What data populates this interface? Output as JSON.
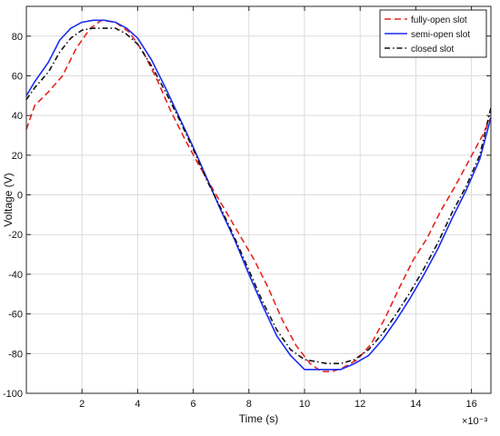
{
  "chart_data": {
    "type": "line",
    "title": "",
    "xlabel": "Time (s)",
    "ylabel": "Voltage (V)",
    "x_exponent_label": "×10⁻³",
    "xlim": [
      0,
      16.7
    ],
    "ylim": [
      -100,
      95
    ],
    "grid": true,
    "legend_position": "top-right",
    "x_ticks": [
      2,
      4,
      6,
      8,
      10,
      12,
      14,
      16
    ],
    "y_ticks": [
      -100,
      -80,
      -60,
      -40,
      -20,
      0,
      20,
      40,
      60,
      80
    ],
    "x_tick_labels": [
      "2",
      "4",
      "6",
      "8",
      "10",
      "12",
      "14",
      "16"
    ],
    "y_tick_labels": [
      "-100",
      "-80",
      "-60",
      "-40",
      "-20",
      "0",
      "20",
      "40",
      "60",
      "80"
    ],
    "series": [
      {
        "name": "fully-open slot",
        "color": "#e8231e",
        "dash": "dashed",
        "x": [
          0,
          0.3,
          0.8,
          1.3,
          1.8,
          2.3,
          2.7,
          3.2,
          3.7,
          4.2,
          4.7,
          5.2,
          5.7,
          6.2,
          6.7,
          7.2,
          7.7,
          8.2,
          8.7,
          9.2,
          9.7,
          10.2,
          10.6,
          11.0,
          11.4,
          11.9,
          12.4,
          12.9,
          13.4,
          13.9,
          14.4,
          14.9,
          15.4,
          15.9,
          16.4,
          16.7
        ],
        "y": [
          33,
          45,
          52,
          60,
          74,
          84,
          88,
          87,
          82,
          72,
          58,
          42,
          28,
          15,
          3,
          -9,
          -21,
          -33,
          -47,
          -63,
          -76,
          -85,
          -89,
          -89,
          -87,
          -83,
          -75,
          -62,
          -47,
          -33,
          -22,
          -8,
          4,
          17,
          30,
          39
        ]
      },
      {
        "name": "semi-open slot",
        "color": "#1a2cf2",
        "dash": "solid",
        "x": [
          0,
          0.3,
          0.8,
          1.2,
          1.6,
          2.0,
          2.4,
          2.8,
          3.2,
          3.6,
          4.0,
          4.5,
          5.0,
          5.5,
          6.0,
          6.5,
          7.0,
          7.5,
          8.0,
          8.5,
          9.0,
          9.5,
          10.0,
          10.4,
          10.8,
          11.3,
          11.8,
          12.3,
          12.8,
          13.3,
          13.8,
          14.3,
          14.8,
          15.3,
          15.8,
          16.3,
          16.7
        ],
        "y": [
          50,
          57,
          67,
          78,
          84,
          87,
          88,
          88,
          87,
          84,
          79,
          68,
          54,
          39,
          24,
          8,
          -8,
          -23,
          -40,
          -56,
          -71,
          -81,
          -88,
          -88,
          -88,
          -88,
          -85,
          -81,
          -73,
          -63,
          -52,
          -40,
          -27,
          -12,
          2,
          18,
          39
        ]
      },
      {
        "name": "closed slot",
        "color": "#111111",
        "dash": "dashdot",
        "x": [
          0,
          0.3,
          0.8,
          1.2,
          1.6,
          2.0,
          2.4,
          2.8,
          3.2,
          3.6,
          4.0,
          4.5,
          5.0,
          5.5,
          6.0,
          6.5,
          7.0,
          7.5,
          8.0,
          8.5,
          9.0,
          9.5,
          10.0,
          10.4,
          10.8,
          11.3,
          11.8,
          12.3,
          12.8,
          13.3,
          13.8,
          14.3,
          14.8,
          15.3,
          15.8,
          16.3,
          16.7
        ],
        "y": [
          48,
          54,
          62,
          72,
          79,
          83,
          84,
          84,
          84,
          81,
          76,
          65,
          52,
          38,
          23,
          7,
          -7,
          -22,
          -38,
          -54,
          -68,
          -78,
          -83,
          -84,
          -85,
          -85,
          -83,
          -78,
          -70,
          -60,
          -49,
          -37,
          -24,
          -9,
          4,
          20,
          44
        ]
      }
    ]
  }
}
